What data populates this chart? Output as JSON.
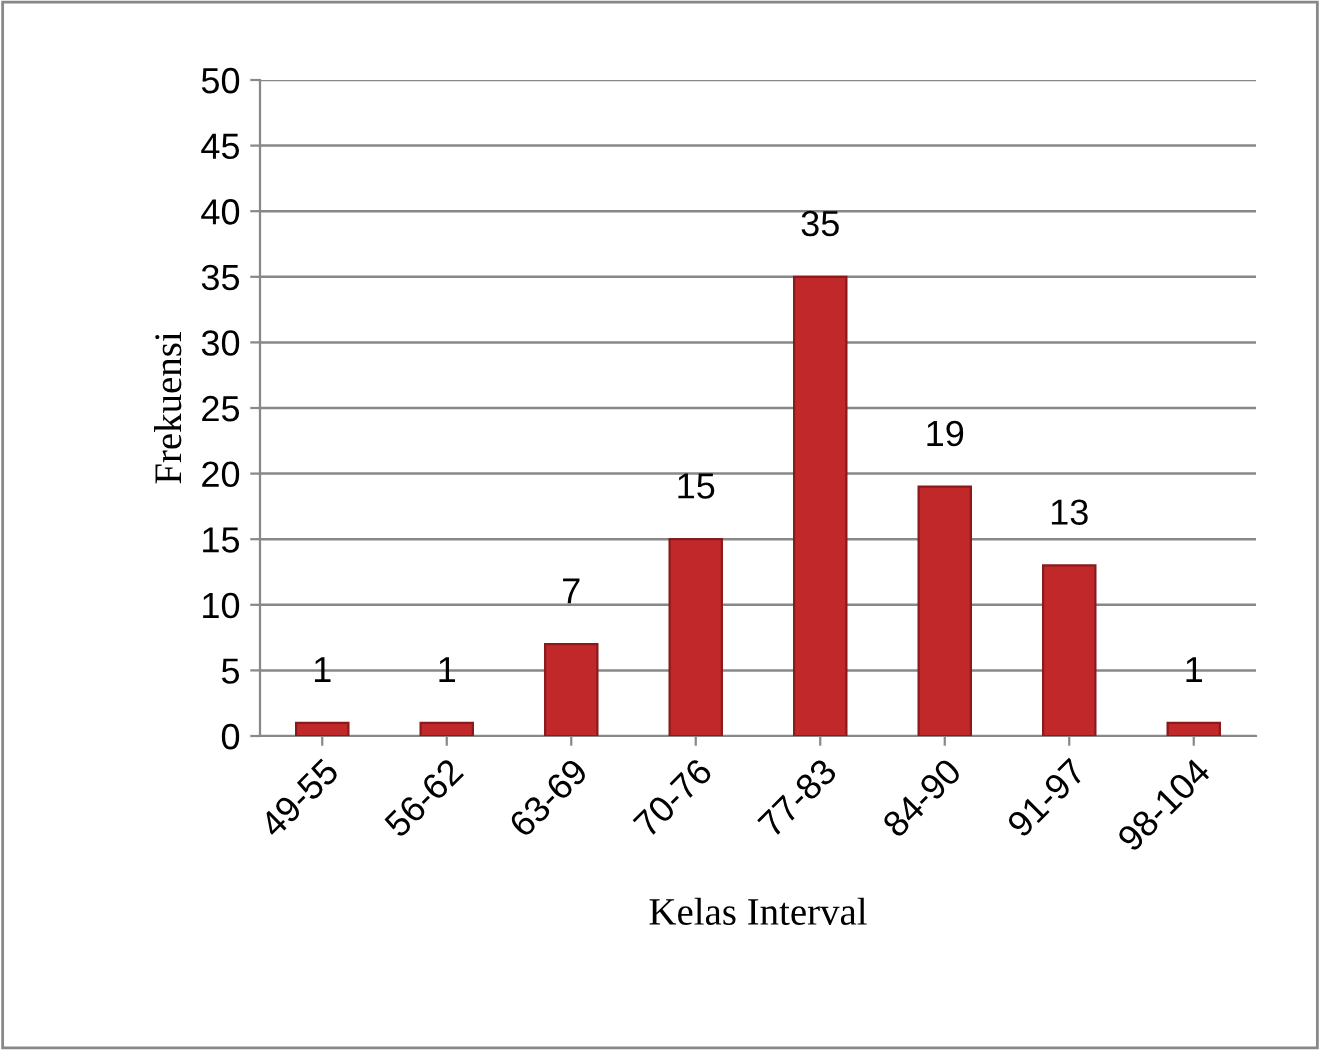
{
  "chart_data": {
    "type": "bar",
    "xlabel": "Kelas Interval",
    "ylabel": "Frekuensi",
    "categories": [
      "49-55",
      "56-62",
      "63-69",
      "70-76",
      "77-83",
      "84-90",
      "91-97",
      "98-104"
    ],
    "values": [
      1,
      1,
      7,
      15,
      35,
      19,
      13,
      1
    ],
    "color": "#c0282a",
    "ylim": [
      0,
      50
    ],
    "yticks": [
      0,
      5,
      10,
      15,
      20,
      25,
      30,
      35,
      40,
      45,
      50
    ],
    "grid": "y",
    "data_labels": true
  }
}
